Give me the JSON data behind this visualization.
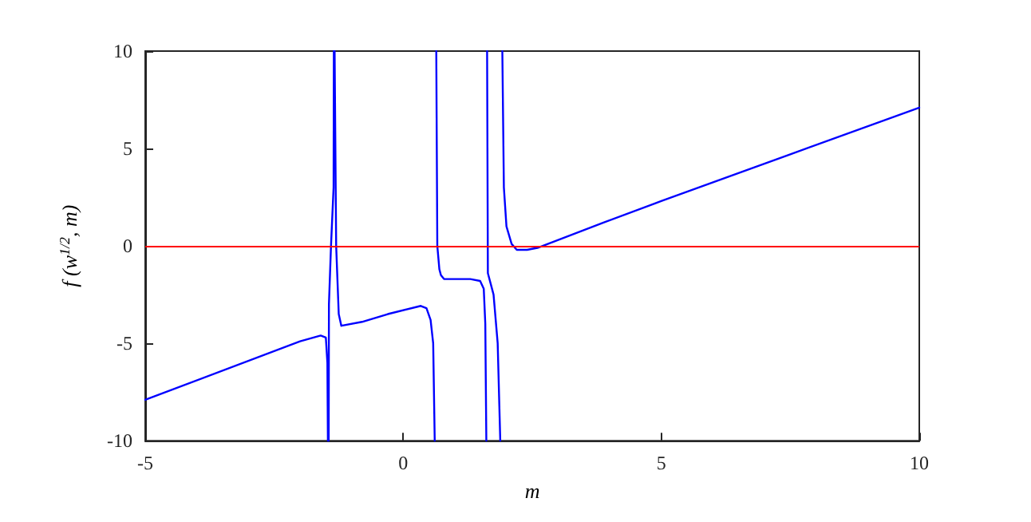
{
  "chart_data": {
    "type": "line",
    "xlabel": "m",
    "ylabel": "f (w$^{1/2}$, m)",
    "x": [
      -5,
      -2,
      -1.6,
      -1.5,
      -1.47,
      -1.46,
      -1.455,
      -1.445,
      -1.44,
      -1.4,
      -1.35,
      -1.345,
      -1.34,
      -1.33,
      -1.3,
      -1.25,
      -1.2,
      -0.8,
      -0.3,
      0.34,
      0.45,
      0.53,
      0.58,
      0.61,
      0.62,
      0.64,
      0.66,
      0.7,
      0.73,
      0.79,
      1.0,
      1.3,
      1.49,
      1.56,
      1.59,
      1.61,
      1.615,
      1.625,
      1.64,
      1.7,
      1.75,
      1.83,
      1.88,
      1.9,
      1.92,
      1.95,
      2.0,
      2.1,
      2.2,
      2.4,
      2.6,
      3.88,
      5,
      7.5,
      10
    ],
    "series": [
      {
        "color": "#0000ff",
        "values": [
          -7.9,
          -4.9,
          -4.6,
          -4.7,
          -6,
          -10,
          null,
          -10,
          -3,
          0,
          3,
          10,
          null,
          10,
          0,
          -3.5,
          -4.1,
          -3.9,
          -3.5,
          -3.08,
          -3.2,
          -3.8,
          -5,
          -10,
          null,
          10,
          0,
          -1.2,
          -1.5,
          -1.7,
          -1.7,
          -1.7,
          -1.8,
          -2.2,
          -4,
          -10,
          null,
          10,
          -1.4,
          -2,
          -2.5,
          -5,
          -10,
          null,
          10,
          3,
          1,
          0.1,
          -0.2,
          -0.2,
          -0.1,
          1.2,
          2.3,
          4.7,
          7.1
        ]
      }
    ],
    "xlim": [
      -5,
      10
    ],
    "xticks": [
      -5,
      0,
      5,
      10
    ],
    "ylim": [
      -10,
      10
    ],
    "yticks": [
      -10,
      -5,
      0,
      5,
      10
    ],
    "ref_lines": [
      {
        "axis": "y",
        "value": 0,
        "color": "#ff0000"
      }
    ],
    "grid": false,
    "marker": "none",
    "line_style": "solid"
  }
}
